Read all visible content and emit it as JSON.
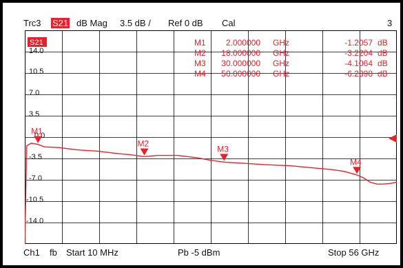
{
  "header": {
    "trace": "Trc3",
    "param": "S21",
    "format": "dB Mag",
    "scale": "3.5 dB /",
    "ref": "Ref 0 dB",
    "cal": "Cal",
    "trace_number": "3"
  },
  "footer": {
    "channel": "Ch1",
    "mode": "fb",
    "start": "Start  10 MHz",
    "power": "Pb   -5 dBm",
    "stop": "Stop  56 GHz"
  },
  "plot": {
    "badge": "S21",
    "y_ticks": [
      "14.0",
      "10.5",
      "7.0",
      "3.5",
      "0.0",
      "-3.5",
      "-7.0",
      "-10.5",
      "-14.0"
    ]
  },
  "markers": [
    {
      "name": "M1",
      "freq": "2.000000",
      "unit": "GHz",
      "value": "-1.2057",
      "vunit": "dB",
      "x_ghz": 2,
      "y_db": -1.2057
    },
    {
      "name": "M2",
      "freq": "18.000000",
      "unit": "GHz",
      "value": "-3.2204",
      "vunit": "dB",
      "x_ghz": 18,
      "y_db": -3.2204
    },
    {
      "name": "M3",
      "freq": "30.000000",
      "unit": "GHz",
      "value": "-4.1064",
      "vunit": "dB",
      "x_ghz": 30,
      "y_db": -4.1064
    },
    {
      "name": "M4",
      "freq": "50.000000",
      "unit": "GHz",
      "value": "-6.2398",
      "vunit": "dB",
      "x_ghz": 50,
      "y_db": -6.2398
    }
  ],
  "colors": {
    "trace": "#e8202a",
    "grid": "#000000",
    "text": "#111111"
  },
  "chart_data": {
    "type": "line",
    "x_unit": "GHz",
    "y_unit": "dB",
    "xlim": [
      0.01,
      56
    ],
    "ylim": [
      -17.5,
      17.5
    ],
    "ref_level": 0,
    "grid": true,
    "series": [
      {
        "name": "S21",
        "x": [
          0.01,
          0.3,
          1,
          2,
          3,
          5,
          8,
          11,
          14,
          16,
          18,
          20,
          23,
          26,
          28,
          30,
          33,
          36,
          40,
          43,
          46,
          48,
          50,
          51,
          52,
          53,
          54,
          55,
          56
        ],
        "y": [
          -17.5,
          -1.4,
          -1.0,
          -1.2,
          -1.6,
          -1.7,
          -2.1,
          -2.3,
          -2.7,
          -2.9,
          -3.2,
          -3.0,
          -3.0,
          -3.4,
          -3.8,
          -4.1,
          -4.3,
          -4.5,
          -4.7,
          -5.0,
          -5.3,
          -5.6,
          -6.2,
          -6.7,
          -7.4,
          -7.7,
          -7.7,
          -7.6,
          -7.4
        ]
      }
    ]
  }
}
